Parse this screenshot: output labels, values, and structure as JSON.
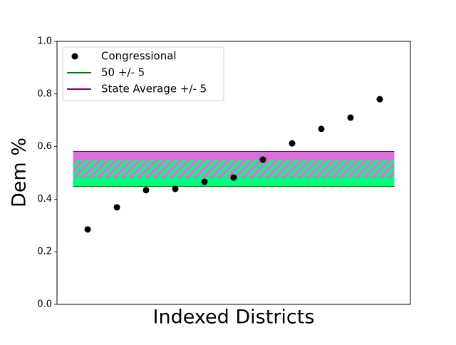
{
  "chart_data": {
    "type": "scatter",
    "xlabel": "Indexed Districts",
    "ylabel": "Dem %",
    "xlim": [
      -0.05,
      12.05
    ],
    "ylim": [
      0,
      1
    ],
    "yticks": [
      {
        "value": 0,
        "label": "0.0"
      },
      0.2,
      0.4,
      0.6,
      0.8,
      {
        "value": 1,
        "label": "1.0"
      }
    ],
    "legend": "upper left",
    "series": [
      {
        "name": "Congressional",
        "color": "#000000",
        "x": [
          1,
          2,
          3,
          4,
          5,
          6,
          7,
          8,
          9,
          10,
          11
        ],
        "values": [
          0.285,
          0.369,
          0.434,
          0.439,
          0.466,
          0.482,
          0.55,
          0.612,
          0.667,
          0.71,
          0.78
        ]
      },
      {
        "name": "50 +/- 5",
        "color": "#008000",
        "fill": "#00ff7f",
        "x": [
          0.5,
          11.5
        ],
        "low": 0.45,
        "high": 0.55
      },
      {
        "name": "State Average +/- 5",
        "color": "#800080",
        "fill": "#da70d6",
        "x": [
          0.5,
          11.5
        ],
        "low": 0.48,
        "high": 0.58
      }
    ]
  }
}
